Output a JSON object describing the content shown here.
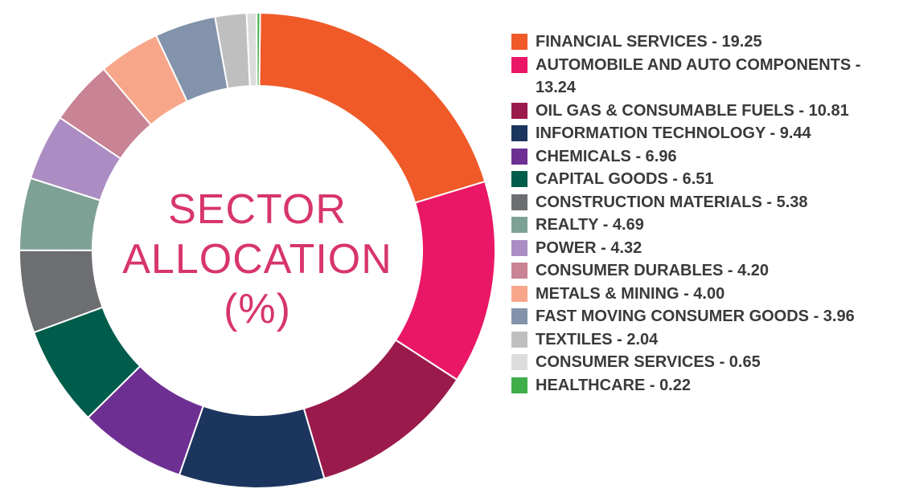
{
  "chart_data": {
    "type": "donut",
    "center_label": [
      "SECTOR",
      "ALLOCATION",
      "(%)"
    ],
    "series": [
      {
        "label": "FINANCIAL SERVICES - 19.25",
        "value": 19.25,
        "color": "#f05a28"
      },
      {
        "label": "AUTOMOBILE AND AUTO COMPONENTS - 13.24",
        "value": 13.24,
        "color": "#ea1766"
      },
      {
        "label": "OIL GAS & CONSUMABLE FUELS - 10.81",
        "value": 10.81,
        "color": "#9a1a4c"
      },
      {
        "label": "INFORMATION TECHNOLOGY - 9.44",
        "value": 9.44,
        "color": "#1c355e"
      },
      {
        "label": "CHEMICALS - 6.96",
        "value": 6.96,
        "color": "#6e2f93"
      },
      {
        "label": "CAPITAL GOODS - 6.51",
        "value": 6.51,
        "color": "#005c4b"
      },
      {
        "label": "CONSTRUCTION MATERIALS - 5.38",
        "value": 5.38,
        "color": "#6d6e71"
      },
      {
        "label": "REALTY - 4.69",
        "value": 4.69,
        "color": "#7ea195"
      },
      {
        "label": "POWER - 4.32",
        "value": 4.32,
        "color": "#ab8dc3"
      },
      {
        "label": "CONSUMER DURABLES - 4.20",
        "value": 4.2,
        "color": "#c88394"
      },
      {
        "label": "METALS & MINING - 4.00",
        "value": 4.0,
        "color": "#f8a68a"
      },
      {
        "label": "FAST MOVING CONSUMER GOODS - 3.96",
        "value": 3.96,
        "color": "#8393ab"
      },
      {
        "label": "TEXTILES - 2.04",
        "value": 2.04,
        "color": "#bfbfbf"
      },
      {
        "label": "CONSUMER SERVICES - 0.65",
        "value": 0.65,
        "color": "#dcdcdc"
      },
      {
        "label": "HEALTHCARE - 0.22",
        "value": 0.22,
        "color": "#3fae49"
      }
    ]
  }
}
